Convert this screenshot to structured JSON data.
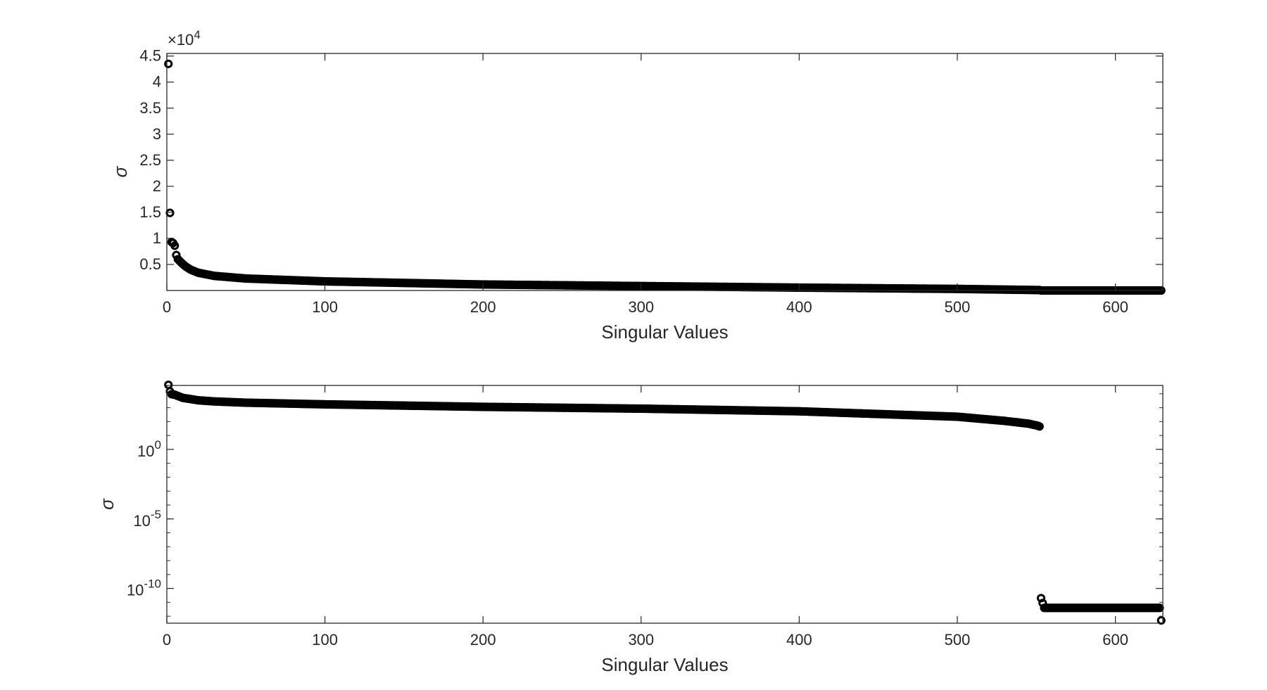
{
  "chart_data": [
    {
      "type": "scatter",
      "title": "",
      "xlabel": "Singular Values",
      "ylabel": "σ",
      "xlim": [
        0,
        630
      ],
      "ylim": [
        0,
        45500
      ],
      "yscale": "linear",
      "y_exponent_label": {
        "base": "×10",
        "exponent": "4"
      },
      "xticks": [
        0,
        100,
        200,
        300,
        400,
        500,
        600
      ],
      "xticklabels": [
        "0",
        "100",
        "200",
        "300",
        "400",
        "500",
        "600"
      ],
      "yticks": [
        5000,
        10000,
        15000,
        20000,
        25000,
        30000,
        35000,
        40000,
        45000
      ],
      "yticklabels": [
        "0.5",
        "1",
        "1.5",
        "2",
        "2.5",
        "3",
        "3.5",
        "4",
        "4.5"
      ],
      "marker": "o",
      "marker_color": "#000000",
      "grid": false,
      "legend": "none",
      "n_points": 629,
      "points": [
        {
          "x": 1,
          "y": 43500
        },
        {
          "x": 2,
          "y": 14900
        },
        {
          "x": 3,
          "y": 9300
        },
        {
          "x": 4,
          "y": 9100
        },
        {
          "x": 5,
          "y": 8600
        },
        {
          "x": 6,
          "y": 6800
        },
        {
          "x": 7,
          "y": 6000
        },
        {
          "x": 8,
          "y": 5700
        },
        {
          "x": 10,
          "y": 5100
        },
        {
          "x": 12,
          "y": 4600
        },
        {
          "x": 15,
          "y": 4000
        },
        {
          "x": 20,
          "y": 3400
        },
        {
          "x": 30,
          "y": 2800
        },
        {
          "x": 50,
          "y": 2300
        },
        {
          "x": 100,
          "y": 1750
        },
        {
          "x": 200,
          "y": 1150
        },
        {
          "x": 300,
          "y": 850
        },
        {
          "x": 400,
          "y": 550
        },
        {
          "x": 500,
          "y": 300
        },
        {
          "x": 552,
          "y": 80
        },
        {
          "x": 553,
          "y": 0
        },
        {
          "x": 629,
          "y": 0
        }
      ]
    },
    {
      "type": "scatter",
      "title": "",
      "xlabel": "Singular Values",
      "ylabel": "σ",
      "xlim": [
        0,
        630
      ],
      "ylim_log10": [
        -12.5,
        4.6
      ],
      "yscale": "log",
      "xticks": [
        0,
        100,
        200,
        300,
        400,
        500,
        600
      ],
      "xticklabels": [
        "0",
        "100",
        "200",
        "300",
        "400",
        "500",
        "600"
      ],
      "yticks_log10": [
        0,
        -5,
        -10
      ],
      "yticklabels": [
        {
          "base": "10",
          "exponent": "0"
        },
        {
          "base": "10",
          "exponent": "-5"
        },
        {
          "base": "10",
          "exponent": "-10"
        }
      ],
      "marker": "o",
      "marker_color": "#000000",
      "grid": false,
      "legend": "none",
      "n_points": 629,
      "points_log10": [
        {
          "x": 1,
          "y": 4.64
        },
        {
          "x": 2,
          "y": 4.17
        },
        {
          "x": 3,
          "y": 3.97
        },
        {
          "x": 5,
          "y": 3.93
        },
        {
          "x": 10,
          "y": 3.71
        },
        {
          "x": 20,
          "y": 3.53
        },
        {
          "x": 30,
          "y": 3.45
        },
        {
          "x": 50,
          "y": 3.36
        },
        {
          "x": 100,
          "y": 3.24
        },
        {
          "x": 200,
          "y": 3.06
        },
        {
          "x": 300,
          "y": 2.93
        },
        {
          "x": 400,
          "y": 2.74
        },
        {
          "x": 500,
          "y": 2.35
        },
        {
          "x": 530,
          "y": 2.05
        },
        {
          "x": 545,
          "y": 1.85
        },
        {
          "x": 551,
          "y": 1.7
        },
        {
          "x": 552,
          "y": 1.65
        },
        {
          "x": 553,
          "y": -10.7
        },
        {
          "x": 555,
          "y": -11.4
        },
        {
          "x": 628,
          "y": -11.4
        },
        {
          "x": 629,
          "y": -12.3
        }
      ]
    }
  ]
}
